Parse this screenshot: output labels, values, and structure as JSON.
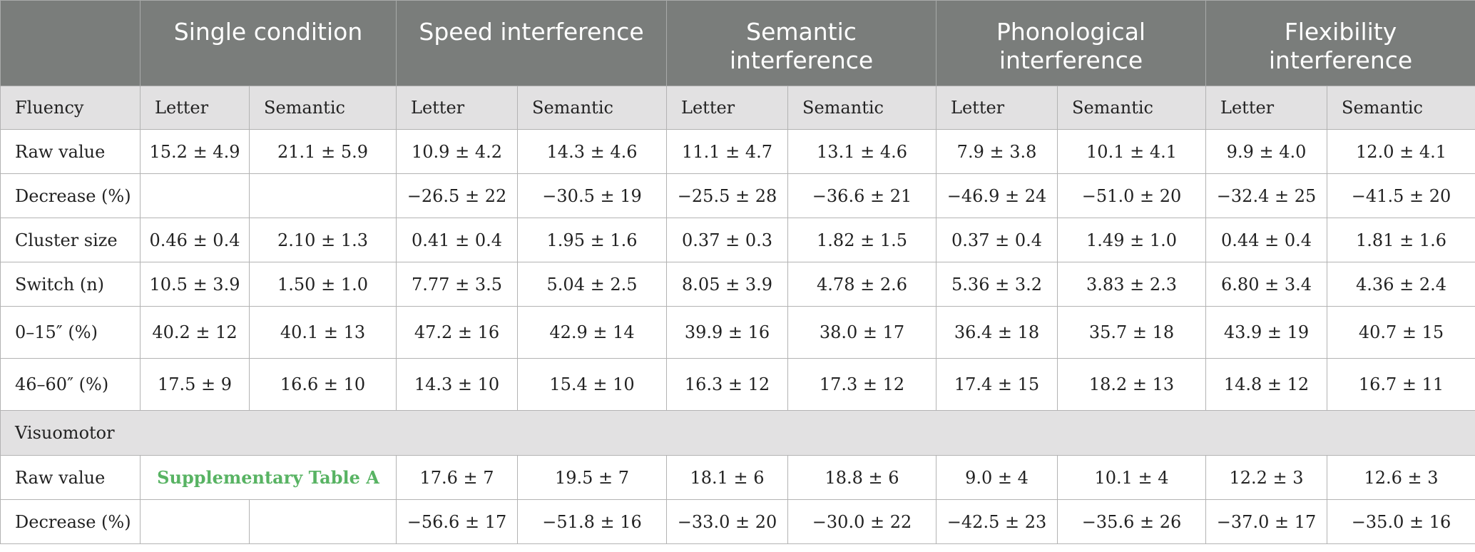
{
  "header": {
    "corner": "",
    "groups": [
      "Single condition",
      "Speed interference",
      "Semantic interference",
      "Phonological interference",
      "Flexibility interference"
    ]
  },
  "fluency": {
    "label": "Fluency",
    "subheaders": [
      "Letter",
      "Semantic",
      "Letter",
      "Semantic",
      "Letter",
      "Semantic",
      "Letter",
      "Semantic",
      "Letter",
      "Semantic"
    ],
    "rows": [
      {
        "label": "Raw value",
        "values": [
          "15.2 ± 4.9",
          "21.1 ± 5.9",
          "10.9 ± 4.2",
          "14.3 ± 4.6",
          "11.1 ± 4.7",
          "13.1 ± 4.6",
          "7.9 ± 3.8",
          "10.1 ± 4.1",
          "9.9 ± 4.0",
          "12.0 ± 4.1"
        ]
      },
      {
        "label": "Decrease (%)",
        "values": [
          "",
          "",
          "−26.5 ± 22",
          "−30.5 ± 19",
          "−25.5 ± 28",
          "−36.6 ± 21",
          "−46.9 ± 24",
          "−51.0 ± 20",
          "−32.4 ± 25",
          "−41.5 ± 20"
        ]
      },
      {
        "label": "Cluster size",
        "values": [
          "0.46 ± 0.4",
          "2.10 ± 1.3",
          "0.41 ± 0.4",
          "1.95 ± 1.6",
          "0.37 ± 0.3",
          "1.82 ± 1.5",
          "0.37 ± 0.4",
          "1.49 ± 1.0",
          "0.44 ± 0.4",
          "1.81 ± 1.6"
        ]
      },
      {
        "label": "Switch (n)",
        "values": [
          "10.5 ± 3.9",
          "1.50 ± 1.0",
          "7.77 ± 3.5",
          "5.04 ± 2.5",
          "8.05 ± 3.9",
          "4.78 ± 2.6",
          "5.36 ± 3.2",
          "3.83 ± 2.3",
          "6.80 ± 3.4",
          "4.36 ± 2.4"
        ]
      },
      {
        "label": "0–15″ (%)",
        "values": [
          "40.2 ± 12",
          "40.1 ± 13",
          "47.2 ± 16",
          "42.9 ± 14",
          "39.9 ± 16",
          "38.0 ± 17",
          "36.4 ± 18",
          "35.7 ± 18",
          "43.9 ± 19",
          "40.7 ± 15"
        ]
      },
      {
        "label": "46–60″ (%)",
        "values": [
          "17.5 ± 9",
          "16.6 ± 10",
          "14.3 ± 10",
          "15.4 ± 10",
          "16.3 ± 12",
          "17.3 ± 12",
          "17.4 ± 15",
          "18.2 ± 13",
          "14.8 ± 12",
          "16.7 ± 11"
        ]
      }
    ]
  },
  "visuomotor": {
    "label": "Visuomotor",
    "raw": {
      "label": "Raw value",
      "link": "Supplementary Table A",
      "values": [
        "17.6 ± 7",
        "19.5 ± 7",
        "18.1 ± 6",
        "18.8 ± 6",
        "9.0 ± 4",
        "10.1 ± 4",
        "12.2 ± 3",
        "12.6 ± 3"
      ]
    },
    "decrease": {
      "label": "Decrease (%)",
      "values": [
        "",
        "",
        "−56.6 ± 17",
        "−51.8 ± 16",
        "−33.0 ± 20",
        "−30.0 ± 22",
        "−42.5 ± 23",
        "−35.6 ± 26",
        "−37.0 ± 17",
        "−35.0 ± 16"
      ]
    }
  },
  "colors": {
    "header_bg": "#7a7d7b",
    "subheader_bg": "#e2e1e2",
    "link": "#58b363"
  }
}
